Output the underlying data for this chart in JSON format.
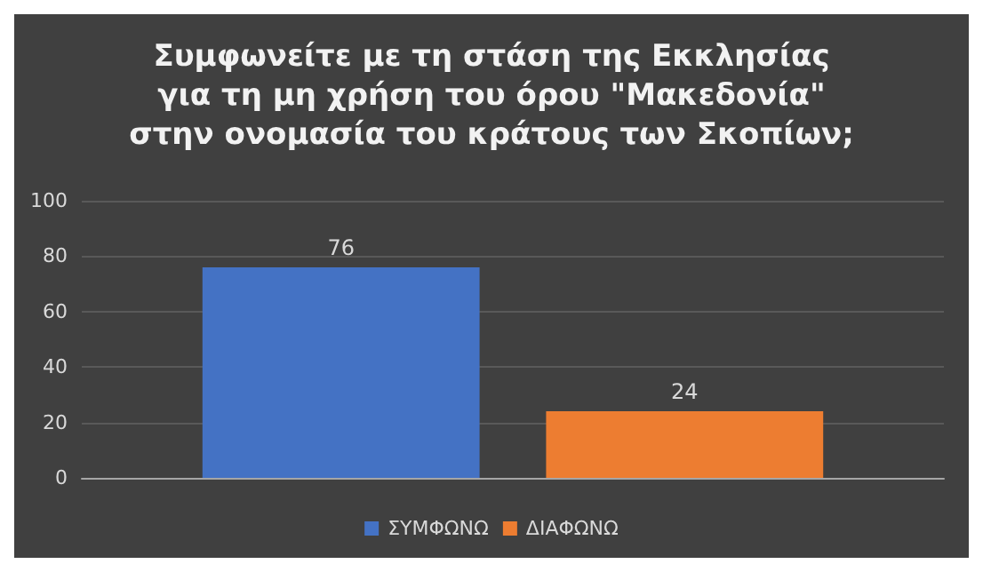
{
  "chart_data": {
    "type": "bar",
    "title": "Συμφωνείτε με τη στάση της Εκκλησίας\nγια τη μη χρήση του όρου \"Μακεδονία\"\nστην ονομασία του κράτους των Σκοπίων;",
    "categories": [
      null
    ],
    "series": [
      {
        "name": "ΣΥΜΦΩΝΩ",
        "color": "#4472c4",
        "values": [
          76
        ]
      },
      {
        "name": "ΔΙΑΦΩΝΩ",
        "color": "#ed7d31",
        "values": [
          24
        ]
      }
    ],
    "ylim": [
      0,
      100
    ],
    "yticks": [
      0,
      20,
      40,
      60,
      80,
      100
    ],
    "grid": "y",
    "legend": "bottom",
    "data_labels": true
  }
}
